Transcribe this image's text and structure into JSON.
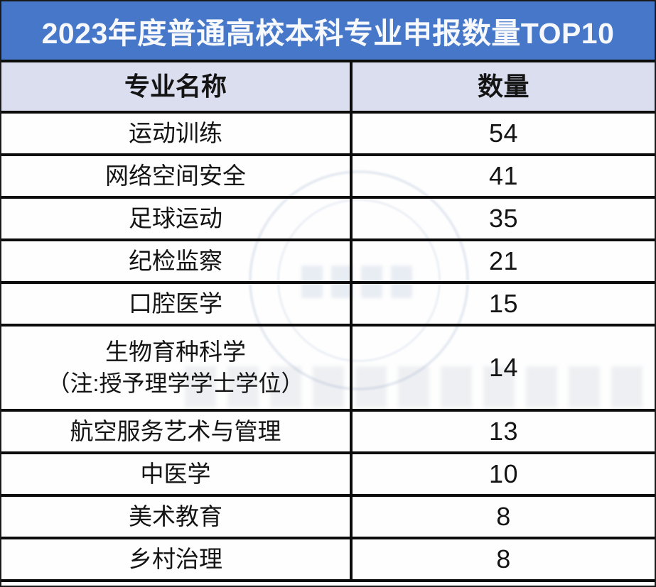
{
  "banner": {
    "title": "2023年度普通高校本科专业申报数量TOP10"
  },
  "table": {
    "columns": [
      {
        "label": "专业名称"
      },
      {
        "label": "数量"
      }
    ],
    "rows": [
      {
        "name": "运动训练",
        "count": "54"
      },
      {
        "name": "网络空间安全",
        "count": "41"
      },
      {
        "name": "足球运动",
        "count": "35"
      },
      {
        "name": "纪检监察",
        "count": "21"
      },
      {
        "name": "口腔医学",
        "count": "15"
      },
      {
        "name": "生物育种科学",
        "note": "（注:授予理学学士学位）",
        "count": "14"
      },
      {
        "name": "航空服务艺术与管理",
        "count": "13"
      },
      {
        "name": "中医学",
        "count": "10"
      },
      {
        "name": "美术教育",
        "count": "8"
      },
      {
        "name": "乡村治理",
        "count": "8"
      }
    ]
  },
  "colors": {
    "accent": "#4677c9",
    "banner-text": "#f6f8fc",
    "header-bg": "#dadeef",
    "line": "#0c0c0c",
    "cell-text": "#141414",
    "row-bg": "#fefefe"
  },
  "chart_data": {
    "type": "table",
    "title": "2023年度普通高校本科专业申报数量TOP10",
    "columns": [
      "专业名称",
      "数量"
    ],
    "categories": [
      "运动训练",
      "网络空间安全",
      "足球运动",
      "纪检监察",
      "口腔医学",
      "生物育种科学（注:授予理学学士学位）",
      "航空服务艺术与管理",
      "中医学",
      "美术教育",
      "乡村治理"
    ],
    "values": [
      54,
      41,
      35,
      21,
      15,
      14,
      13,
      10,
      8,
      8
    ],
    "notes": "排名表：每行为专业名称与申报数量；第6行含两行文字；表头底色淡紫蓝，标题横幅为蓝底白字"
  }
}
